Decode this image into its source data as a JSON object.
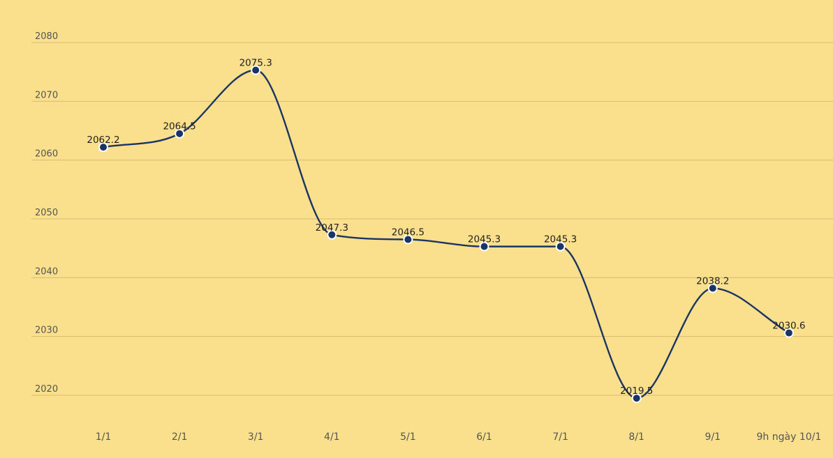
{
  "chart_data": {
    "type": "line",
    "title": "",
    "xlabel": "",
    "ylabel": "",
    "categories": [
      "1/1",
      "2/1",
      "3/1",
      "4/1",
      "5/1",
      "6/1",
      "7/1",
      "8/1",
      "9/1",
      "9h ngày 10/1"
    ],
    "series": [
      {
        "values": [
          2062.2,
          2064.5,
          2075.3,
          2047.3,
          2046.5,
          2045.3,
          2045.3,
          2019.5,
          2038.2,
          2030.6
        ],
        "labels": [
          "2062.2",
          "2064.5",
          "2075.3",
          "2047.3",
          "2046.5",
          "2045.3",
          "2045.3",
          "2019.5",
          "2038.2",
          "2030.6"
        ],
        "color": "#1a3563"
      }
    ],
    "yticks": [
      "2020",
      "2030",
      "2040",
      "2050",
      "2060",
      "2070",
      "2080"
    ],
    "ylim": [
      2020,
      2080
    ],
    "grid": true,
    "legend": "none",
    "background": "#fadf8c"
  }
}
